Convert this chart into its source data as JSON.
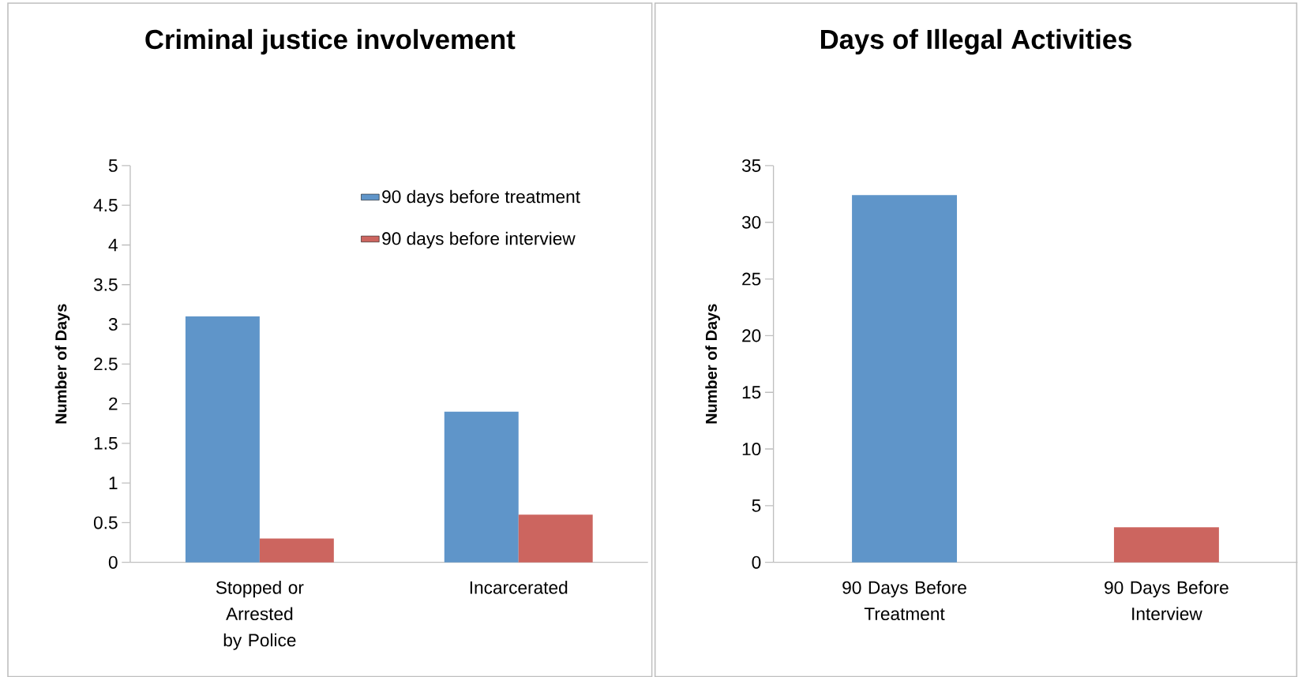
{
  "chart_data": [
    {
      "type": "bar",
      "title": "Criminal justice involvement",
      "ylabel": "Number of Days",
      "categories": [
        "Stopped or Arrested by Police",
        "Incarcerated"
      ],
      "series": [
        {
          "name": "90 days before treatment",
          "color": "#5f95c9",
          "values": [
            3.1,
            1.9
          ]
        },
        {
          "name": "90 days before interview",
          "color": "#cc655f",
          "values": [
            0.3,
            0.6
          ]
        }
      ],
      "ylim": [
        0,
        5
      ],
      "yticks": [
        0,
        0.5,
        1,
        1.5,
        2,
        2.5,
        3,
        3.5,
        4,
        4.5,
        5
      ],
      "legend": "top right"
    },
    {
      "type": "bar",
      "title": "Days of Illegal Activities",
      "ylabel": "Number of Days",
      "categories": [
        "90 Days Before Treatment",
        "90 Days Before Interview"
      ],
      "values": [
        32.4,
        3.1
      ],
      "colors": [
        "#5f95c9",
        "#cc655f"
      ],
      "ylim": [
        0,
        35
      ],
      "yticks": [
        0,
        5,
        10,
        15,
        20,
        25,
        30,
        35
      ]
    }
  ]
}
